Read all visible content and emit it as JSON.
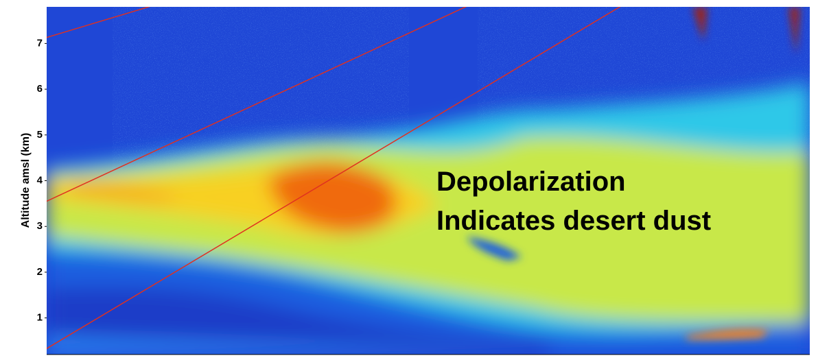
{
  "chart_data": {
    "type": "heatmap",
    "ylabel": "Altitude amsl (km)",
    "annotation": [
      "Depolarization",
      "Indicates desert dust"
    ],
    "ylim": [
      0.2,
      7.8
    ],
    "yticks": [
      1,
      2,
      3,
      4,
      5,
      6,
      7
    ]
  }
}
